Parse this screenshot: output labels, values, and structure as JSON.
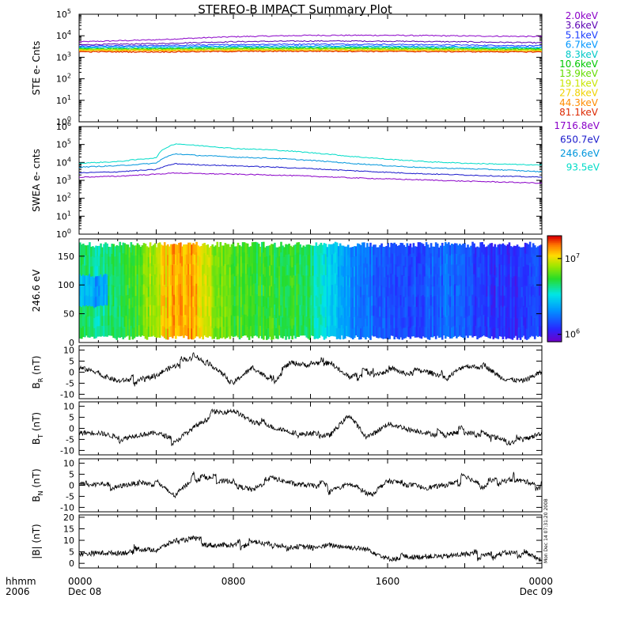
{
  "title": "STEREO-B IMPACT Summary Plot",
  "x_axis": {
    "start_time_label": "hhmm",
    "start_year_label": "2006",
    "ticks": [
      {
        "t": 0,
        "time": "0000",
        "date": "Dec 08"
      },
      {
        "t": 8,
        "time": "0800",
        "date": ""
      },
      {
        "t": 16,
        "time": "1600",
        "date": ""
      },
      {
        "t": 24,
        "time": "0000",
        "date": "Dec 09"
      }
    ],
    "range_hours": [
      0,
      24
    ]
  },
  "side_stamp": "Mon Dec 14 07:31:20 2008",
  "colors": {
    "ste": [
      "#8a00c8",
      "#5a00b4",
      "#1a3cff",
      "#0096ff",
      "#00c8c8",
      "#00c800",
      "#64dc00",
      "#c8e600",
      "#f0d200",
      "#ff8c00",
      "#dc2800"
    ],
    "swea": [
      "#8a00c8",
      "#1a1acc",
      "#0096dc",
      "#00dcc8"
    ]
  },
  "chart_data": [
    {
      "panel": "ste",
      "type": "line",
      "ylabel": "STE e- Cnts",
      "yscale": "log",
      "ylim": [
        1,
        100000
      ],
      "ytick_labels": [
        "10^0",
        "10^1",
        "10^2",
        "10^3",
        "10^4",
        "10^5"
      ],
      "legend": [
        "2.0keV",
        "3.6keV",
        "5.1keV",
        "6.7keV",
        "8.3keV",
        "10.6keV",
        "13.9keV",
        "19.1keV",
        "27.8keV",
        "44.3keV",
        "81.1keV"
      ],
      "series": [
        {
          "name": "2.0keV",
          "x": [
            0,
            4,
            8,
            12,
            16,
            20,
            24
          ],
          "y": [
            5200,
            6500,
            9000,
            10500,
            10500,
            9800,
            9200
          ]
        },
        {
          "name": "3.6keV",
          "x": [
            0,
            4,
            8,
            12,
            16,
            20,
            24
          ],
          "y": [
            3800,
            4300,
            5300,
            5700,
            5600,
            5200,
            4700
          ]
        },
        {
          "name": "5.1keV",
          "x": [
            0,
            4,
            8,
            12,
            16,
            20,
            24
          ],
          "y": [
            3300,
            3500,
            3900,
            4100,
            4000,
            3700,
            3400
          ]
        },
        {
          "name": "6.7keV",
          "x": [
            0,
            4,
            8,
            12,
            16,
            20,
            24
          ],
          "y": [
            3000,
            3100,
            3300,
            3400,
            3300,
            3100,
            2900
          ]
        },
        {
          "name": "8.3keV",
          "x": [
            0,
            4,
            8,
            12,
            16,
            20,
            24
          ],
          "y": [
            2700,
            2800,
            2950,
            3000,
            2950,
            2800,
            2650
          ]
        },
        {
          "name": "10.6keV",
          "x": [
            0,
            4,
            8,
            12,
            16,
            20,
            24
          ],
          "y": [
            2500,
            2500,
            2650,
            2700,
            2650,
            2550,
            2400
          ]
        },
        {
          "name": "13.9keV",
          "x": [
            0,
            4,
            8,
            12,
            16,
            20,
            24
          ],
          "y": [
            2350,
            2350,
            2450,
            2500,
            2450,
            2350,
            2250
          ]
        },
        {
          "name": "19.1keV",
          "x": [
            0,
            4,
            8,
            12,
            16,
            20,
            24
          ],
          "y": [
            2200,
            2200,
            2300,
            2300,
            2250,
            2200,
            2100
          ]
        },
        {
          "name": "27.8keV",
          "x": [
            0,
            4,
            8,
            12,
            16,
            20,
            24
          ],
          "y": [
            2050,
            2050,
            2100,
            2150,
            2100,
            2050,
            1950
          ]
        },
        {
          "name": "44.3keV",
          "x": [
            0,
            4,
            8,
            12,
            16,
            20,
            24
          ],
          "y": [
            1900,
            1900,
            1950,
            2000,
            1950,
            1900,
            1850
          ]
        },
        {
          "name": "81.1keV",
          "x": [
            0,
            4,
            8,
            12,
            16,
            20,
            24
          ],
          "y": [
            1800,
            1750,
            1850,
            1900,
            1850,
            1800,
            1750
          ]
        }
      ]
    },
    {
      "panel": "swea",
      "type": "line",
      "ylabel": "SWEA e- cnts",
      "yscale": "log",
      "ylim": [
        1,
        1000000
      ],
      "ytick_labels": [
        "10^0",
        "10^1",
        "10^2",
        "10^3",
        "10^4",
        "10^5",
        "10^6"
      ],
      "legend": [
        "1716.8eV",
        "650.7eV",
        "246.6eV",
        "93.5eV"
      ],
      "series": [
        {
          "name": "1716.8eV",
          "x": [
            0,
            2,
            4,
            5,
            6,
            8,
            10,
            12,
            14,
            16,
            18,
            20,
            22,
            24
          ],
          "y": [
            1500,
            1700,
            2200,
            2600,
            2400,
            2200,
            2000,
            1700,
            1400,
            1200,
            1050,
            900,
            800,
            700
          ]
        },
        {
          "name": "650.7eV",
          "x": [
            0,
            2,
            4,
            5,
            6,
            8,
            10,
            12,
            14,
            16,
            18,
            20,
            22,
            24
          ],
          "y": [
            2600,
            3000,
            4000,
            8500,
            7500,
            6500,
            5500,
            4500,
            3500,
            2800,
            2300,
            2000,
            1700,
            1500
          ]
        },
        {
          "name": "246.6eV",
          "x": [
            0,
            2,
            4,
            5,
            6,
            8,
            10,
            12,
            14,
            16,
            18,
            20,
            22,
            24
          ],
          "y": [
            5500,
            6500,
            9000,
            30000,
            25000,
            20000,
            17000,
            13000,
            9000,
            6500,
            5000,
            4500,
            3800,
            3000
          ]
        },
        {
          "name": "93.5eV",
          "x": [
            0,
            2,
            4,
            5,
            6,
            8,
            10,
            12,
            14,
            16,
            18,
            20,
            22,
            24
          ],
          "y": [
            9000,
            11000,
            18000,
            110000,
            90000,
            60000,
            50000,
            35000,
            22000,
            15000,
            11000,
            9000,
            8000,
            7000
          ]
        }
      ]
    },
    {
      "panel": "pad",
      "type": "heatmap",
      "ylabel": "246.6 eV",
      "ylim": [
        0,
        180
      ],
      "ytick_labels": [
        "0",
        "50",
        "100",
        "150"
      ],
      "colorbar_tick_labels": [
        "10^6",
        "10^7"
      ],
      "colorbar_range": [
        800000,
        20000000
      ],
      "columns_hours": [
        0,
        1,
        2,
        3,
        4,
        5,
        6,
        7,
        8,
        9,
        10,
        11,
        12,
        13,
        14,
        15,
        16,
        17,
        18,
        19,
        20,
        21,
        22,
        23
      ],
      "levels": [
        4500000,
        4000000,
        5000000,
        6000000,
        9000000,
        14000000,
        13000000,
        8000000,
        6000000,
        5500000,
        5500000,
        5500000,
        4500000,
        3000000,
        2200000,
        1800000,
        1500000,
        1400000,
        1500000,
        1700000,
        1500000,
        1300000,
        1200000,
        1300000
      ]
    },
    {
      "panel": "br",
      "type": "line",
      "ylabel": "B_R (nT)",
      "ylim": [
        -12,
        12
      ],
      "ytick_labels": [
        "-10",
        "-5",
        "0",
        "5",
        "10"
      ],
      "x": [
        0,
        1,
        2,
        3,
        4,
        5,
        6,
        7,
        8,
        9,
        10,
        11,
        12,
        13,
        14,
        15,
        16,
        17,
        18,
        19,
        20,
        21,
        22,
        23,
        24
      ],
      "y": [
        2,
        0,
        -4,
        -3,
        0,
        3,
        6,
        2,
        -4,
        2,
        -4,
        4,
        3,
        5,
        -3,
        1,
        0,
        -1,
        0,
        -2,
        3,
        2,
        -3,
        -4,
        0
      ]
    },
    {
      "panel": "bt",
      "type": "line",
      "ylabel": "B_T (nT)",
      "ylim": [
        -12,
        12
      ],
      "ytick_labels": [
        "-10",
        "-5",
        "0",
        "5",
        "10"
      ],
      "x": [
        0,
        1,
        2,
        3,
        4,
        5,
        6,
        7,
        8,
        9,
        10,
        11,
        12,
        13,
        14,
        15,
        16,
        17,
        18,
        19,
        20,
        21,
        22,
        23,
        24
      ],
      "y": [
        -2,
        -2,
        -4,
        -3,
        -2,
        -5,
        1,
        6,
        8,
        3,
        0,
        -2,
        -2,
        -3,
        6,
        -5,
        2,
        0,
        -2,
        -4,
        -1,
        -3,
        -5,
        -6,
        -2
      ]
    },
    {
      "panel": "bn",
      "type": "line",
      "ylabel": "B_N (nT)",
      "ylim": [
        -12,
        12
      ],
      "ytick_labels": [
        "-10",
        "-5",
        "0",
        "5",
        "10"
      ],
      "x": [
        0,
        1,
        2,
        3,
        4,
        5,
        6,
        7,
        8,
        9,
        10,
        11,
        12,
        13,
        14,
        15,
        16,
        17,
        18,
        19,
        20,
        21,
        22,
        23,
        24
      ],
      "y": [
        1,
        1,
        0,
        1,
        0,
        -5,
        4,
        3,
        2,
        -2,
        3,
        1,
        0,
        -1,
        1,
        -4,
        2,
        1,
        -1,
        0,
        3,
        0,
        3,
        2,
        0
      ]
    },
    {
      "panel": "bmag",
      "type": "line",
      "ylabel": "|B| (nT)",
      "ylim": [
        -2,
        21
      ],
      "ytick_labels": [
        "0",
        "5",
        "10",
        "15",
        "20"
      ],
      "x": [
        0,
        1,
        2,
        3,
        4,
        5,
        6,
        7,
        8,
        9,
        10,
        11,
        12,
        13,
        14,
        15,
        16,
        17,
        18,
        19,
        20,
        21,
        22,
        23,
        24
      ],
      "y": [
        4,
        4.5,
        4.5,
        5,
        6,
        10,
        11,
        8,
        8,
        9,
        8,
        8,
        7,
        8,
        7,
        6,
        2,
        2,
        3,
        3,
        4,
        4.5,
        5,
        4.5,
        1
      ]
    }
  ]
}
